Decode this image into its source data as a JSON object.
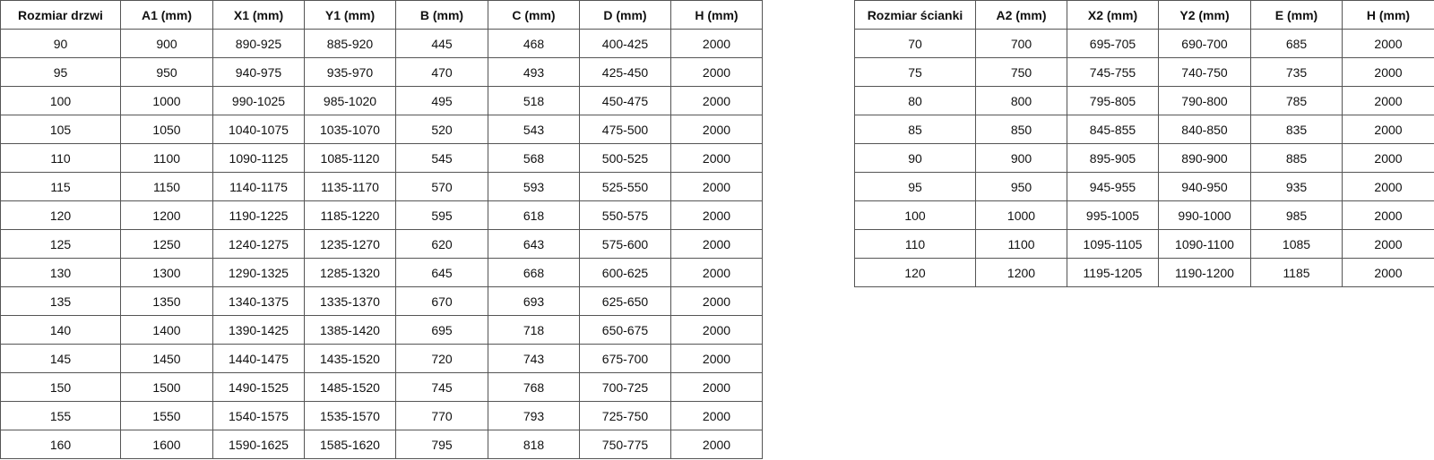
{
  "doors_table": {
    "headers": [
      "Rozmiar drzwi",
      "A1 (mm)",
      "X1 (mm)",
      "Y1 (mm)",
      "B (mm)",
      "C (mm)",
      "D (mm)",
      "H (mm)"
    ],
    "rows": [
      [
        "90",
        "900",
        "890-925",
        "885-920",
        "445",
        "468",
        "400-425",
        "2000"
      ],
      [
        "95",
        "950",
        "940-975",
        "935-970",
        "470",
        "493",
        "425-450",
        "2000"
      ],
      [
        "100",
        "1000",
        "990-1025",
        "985-1020",
        "495",
        "518",
        "450-475",
        "2000"
      ],
      [
        "105",
        "1050",
        "1040-1075",
        "1035-1070",
        "520",
        "543",
        "475-500",
        "2000"
      ],
      [
        "110",
        "1100",
        "1090-1125",
        "1085-1120",
        "545",
        "568",
        "500-525",
        "2000"
      ],
      [
        "115",
        "1150",
        "1140-1175",
        "1135-1170",
        "570",
        "593",
        "525-550",
        "2000"
      ],
      [
        "120",
        "1200",
        "1190-1225",
        "1185-1220",
        "595",
        "618",
        "550-575",
        "2000"
      ],
      [
        "125",
        "1250",
        "1240-1275",
        "1235-1270",
        "620",
        "643",
        "575-600",
        "2000"
      ],
      [
        "130",
        "1300",
        "1290-1325",
        "1285-1320",
        "645",
        "668",
        "600-625",
        "2000"
      ],
      [
        "135",
        "1350",
        "1340-1375",
        "1335-1370",
        "670",
        "693",
        "625-650",
        "2000"
      ],
      [
        "140",
        "1400",
        "1390-1425",
        "1385-1420",
        "695",
        "718",
        "650-675",
        "2000"
      ],
      [
        "145",
        "1450",
        "1440-1475",
        "1435-1520",
        "720",
        "743",
        "675-700",
        "2000"
      ],
      [
        "150",
        "1500",
        "1490-1525",
        "1485-1520",
        "745",
        "768",
        "700-725",
        "2000"
      ],
      [
        "155",
        "1550",
        "1540-1575",
        "1535-1570",
        "770",
        "793",
        "725-750",
        "2000"
      ],
      [
        "160",
        "1600",
        "1590-1625",
        "1585-1620",
        "795",
        "818",
        "750-775",
        "2000"
      ]
    ]
  },
  "walls_table": {
    "headers": [
      "Rozmiar ścianki",
      "A2 (mm)",
      "X2 (mm)",
      "Y2 (mm)",
      "E (mm)",
      "H (mm)"
    ],
    "rows": [
      [
        "70",
        "700",
        "695-705",
        "690-700",
        "685",
        "2000"
      ],
      [
        "75",
        "750",
        "745-755",
        "740-750",
        "735",
        "2000"
      ],
      [
        "80",
        "800",
        "795-805",
        "790-800",
        "785",
        "2000"
      ],
      [
        "85",
        "850",
        "845-855",
        "840-850",
        "835",
        "2000"
      ],
      [
        "90",
        "900",
        "895-905",
        "890-900",
        "885",
        "2000"
      ],
      [
        "95",
        "950",
        "945-955",
        "940-950",
        "935",
        "2000"
      ],
      [
        "100",
        "1000",
        "995-1005",
        "990-1000",
        "985",
        "2000"
      ],
      [
        "110",
        "1100",
        "1095-1105",
        "1090-1100",
        "1085",
        "2000"
      ],
      [
        "120",
        "1200",
        "1195-1205",
        "1190-1200",
        "1185",
        "2000"
      ]
    ]
  }
}
